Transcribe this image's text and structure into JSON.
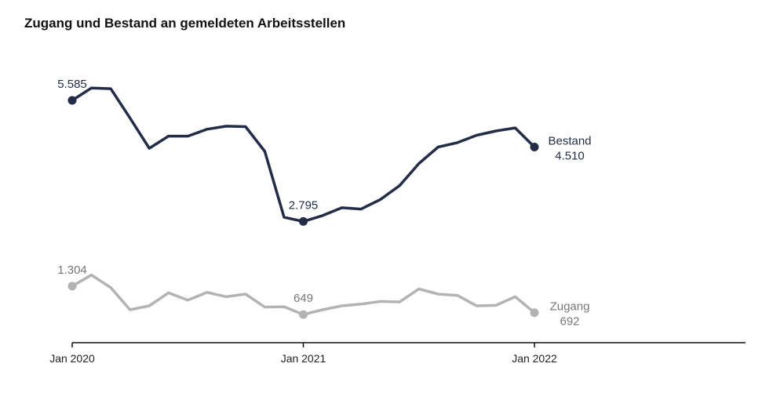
{
  "chart_data": {
    "type": "line",
    "title": "Zugang und Bestand an gemeldeten Arbeitsstellen",
    "xlabel": "",
    "ylabel": "",
    "x_ticks": [
      "Jan 2020",
      "Jan 2021",
      "Jan 2022"
    ],
    "x": [
      "2020-01",
      "2020-02",
      "2020-03",
      "2020-04",
      "2020-05",
      "2020-06",
      "2020-07",
      "2020-08",
      "2020-09",
      "2020-10",
      "2020-11",
      "2020-12",
      "2021-01",
      "2021-02",
      "2021-03",
      "2021-04",
      "2021-05",
      "2021-06",
      "2021-07",
      "2021-08",
      "2021-09",
      "2021-10",
      "2021-11",
      "2021-12",
      "2022-01"
    ],
    "ylim": [
      0,
      6100
    ],
    "grid": false,
    "legend": "none",
    "series": [
      {
        "name": "Bestand",
        "color": "#232d47",
        "values": [
          5585,
          5870,
          5855,
          5180,
          4480,
          4760,
          4760,
          4920,
          4990,
          4980,
          4410,
          2890,
          2795,
          2930,
          3110,
          3080,
          3300,
          3620,
          4130,
          4510,
          4610,
          4780,
          4880,
          4950,
          4510
        ],
        "labeled_points": [
          {
            "index": 0,
            "text": "5.585"
          },
          {
            "index": 12,
            "text": "2.795"
          },
          {
            "index": 24,
            "text": "4.510"
          }
        ],
        "end_label": "Bestand"
      },
      {
        "name": "Zugang",
        "color": "#b3b3b3",
        "values": [
          1304,
          1560,
          1270,
          760,
          850,
          1150,
          980,
          1160,
          1060,
          1120,
          820,
          830,
          649,
          760,
          850,
          890,
          950,
          940,
          1240,
          1120,
          1090,
          850,
          860,
          1060,
          692
        ],
        "labeled_points": [
          {
            "index": 0,
            "text": "1.304"
          },
          {
            "index": 12,
            "text": "649"
          },
          {
            "index": 24,
            "text": "692"
          }
        ],
        "end_label": "Zugang"
      }
    ]
  }
}
